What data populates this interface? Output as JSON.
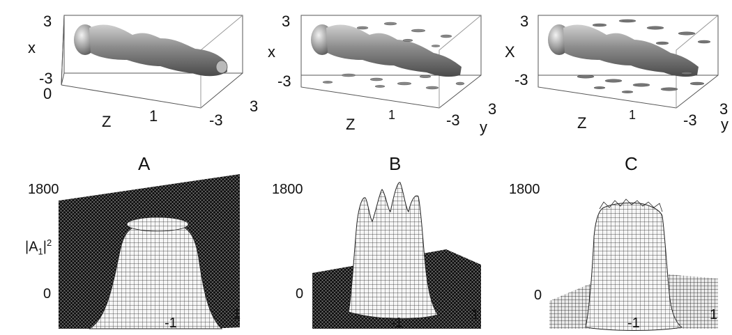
{
  "panels": [
    {
      "title": "A",
      "top_label": {
        "x_axis_label": "x",
        "z_axis_label": "Z",
        "y_axis_label": "",
        "x_max": "3",
        "x_min": "-3",
        "z_min": "0",
        "z_tick": "1",
        "y_min": "-3",
        "y_max": "3"
      },
      "bottom": {
        "y_max": "1800",
        "y_min": "0",
        "x_min": "-1",
        "x_max": "1"
      }
    },
    {
      "title": "B",
      "top_label": {
        "x_axis_label": "x",
        "z_axis_label": "Z",
        "y_axis_label": "y",
        "x_max": "3",
        "x_min": "-3",
        "z_min": "",
        "z_tick": "1",
        "y_min": "-3",
        "y_max": "3"
      },
      "bottom": {
        "y_max": "1800",
        "y_min": "0",
        "x_min": "-1",
        "x_max": "1"
      }
    },
    {
      "title": "C",
      "top_label": {
        "x_axis_label": "X",
        "z_axis_label": "Z",
        "y_axis_label": "y",
        "x_max": "3",
        "x_min": "-3",
        "z_min": "",
        "z_tick": "1",
        "y_min": "-3",
        "y_max": "3"
      },
      "bottom": {
        "y_max": "1800",
        "y_min": "0",
        "x_min": "-1",
        "x_max": "1"
      }
    }
  ],
  "ylabel_base": "|A",
  "ylabel_sub": "1",
  "ylabel_tail": "|",
  "ylabel_sup": "2",
  "colors": {
    "surface_dark": "#1a1a1a",
    "surface_light": "#f4f4f4",
    "tube": "#8c8c8c"
  }
}
